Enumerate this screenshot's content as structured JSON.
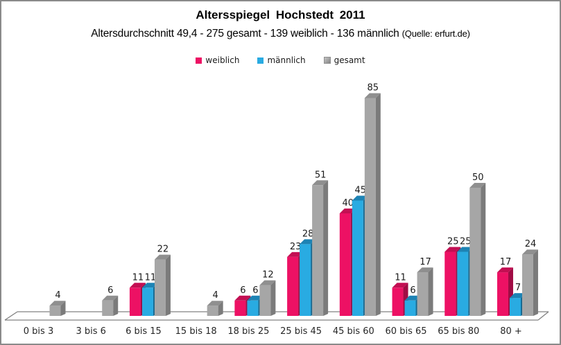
{
  "title": "Altersspiegel Hochstedt 2011",
  "subtitle": "Altersdurchschnitt 49,4 - 275 gesamt - 139 weiblich - 136 männlich",
  "source": "(Quelle: erfurt.de)",
  "colors": {
    "weiblich": "#ED1164",
    "maennlich": "#29ABE2",
    "gesamt": "#A6A6A6",
    "floor_line": "#808080",
    "frame_border": "#8A8A8A",
    "label_text": "#1A1A1A"
  },
  "legend": {
    "items": [
      {
        "label": "weiblich",
        "color": "#ED1164"
      },
      {
        "label": "männlich",
        "color": "#29ABE2"
      },
      {
        "label": "gesamt",
        "color": "#A6A6A6"
      }
    ]
  },
  "chart_data": {
    "type": "bar",
    "style": "3d-clustered",
    "title": "Altersspiegel Hochstedt 2011",
    "subtitle": "Altersdurchschnitt 49,4 - 275 gesamt - 139 weiblich - 136 männlich (Quelle: erfurt.de)",
    "categories": [
      "0 bis 3",
      "3 bis 6",
      "6 bis 15",
      "15 bis 18",
      "18 bis 25",
      "25 bis 45",
      "45 bis 60",
      "60 bis 65",
      "65 bis 80",
      "80 +"
    ],
    "series": [
      {
        "name": "weiblich",
        "color": "#ED1164",
        "top_color": "#C30F53",
        "side_color": "#A00C44",
        "values": [
          null,
          null,
          11,
          null,
          6,
          23,
          40,
          11,
          25,
          17
        ]
      },
      {
        "name": "männlich",
        "color": "#29ABE2",
        "top_color": "#1D83B4",
        "side_color": "#176A92",
        "values": [
          null,
          null,
          11,
          null,
          6,
          28,
          45,
          6,
          25,
          7
        ]
      },
      {
        "name": "gesamt",
        "color": "#A6A6A6",
        "top_color": "#8F8F8F",
        "side_color": "#7B7B7B",
        "values": [
          4,
          6,
          22,
          4,
          12,
          51,
          85,
          17,
          50,
          24
        ]
      }
    ],
    "ylim": [
      0,
      90
    ],
    "grid": false,
    "axes_visible": false,
    "legend_position": "top",
    "data_labels": true
  }
}
